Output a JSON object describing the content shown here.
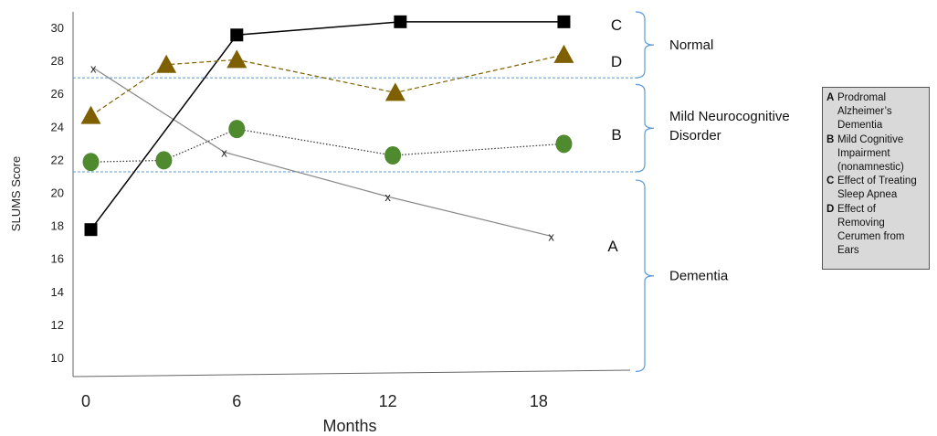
{
  "chart_data": {
    "type": "line",
    "xlabel": "Months",
    "ylabel": "SLUMS Score",
    "x_ticks": [
      "0",
      "6",
      "12",
      "18"
    ],
    "y_ticks": [
      "10",
      "12",
      "14",
      "16",
      "18",
      "20",
      "22",
      "24",
      "26",
      "28",
      "30"
    ],
    "xlim": [
      0,
      21
    ],
    "ylim": [
      9,
      31
    ],
    "series": [
      {
        "name": "A",
        "marker": "x",
        "color": "#888888",
        "line_style": "solid",
        "x": [
          0.3,
          5.5,
          12,
          18.5
        ],
        "y": [
          27.6,
          22.5,
          19.8,
          17.4
        ]
      },
      {
        "name": "B",
        "marker": "circle",
        "color": "#4f8a2f",
        "line_style": "dotted",
        "x": [
          0.2,
          3.1,
          6,
          12.2,
          19
        ],
        "y": [
          21.9,
          22.0,
          23.9,
          22.3,
          23.0
        ]
      },
      {
        "name": "C",
        "marker": "square",
        "color": "#000000",
        "line_style": "solid",
        "x": [
          0.2,
          6,
          12.5,
          19
        ],
        "y": [
          17.8,
          29.6,
          30.4,
          30.4
        ]
      },
      {
        "name": "D",
        "marker": "triangle",
        "color": "#7f6000",
        "line_style": "dashed",
        "x": [
          0.2,
          3.2,
          6,
          12.3,
          19
        ],
        "y": [
          24.7,
          27.8,
          28.1,
          26.1,
          28.4
        ]
      }
    ],
    "thresholds": [
      27,
      21.3
    ],
    "regions": [
      {
        "label": "Normal",
        "y_range": [
          27,
          31
        ]
      },
      {
        "label_lines": [
          "Mild Neurocognitive",
          "Disorder"
        ],
        "y_range": [
          21.3,
          26.6
        ]
      },
      {
        "label": "Dementia",
        "y_range": [
          9.2,
          20.8
        ]
      }
    ],
    "legend": {
      "placement": "right",
      "items": [
        {
          "key": "A",
          "lines": [
            "Prodromal",
            "Alzheimer’s",
            "Dementia"
          ]
        },
        {
          "key": "B",
          "lines": [
            "Mild Cognitive",
            "Impairment",
            "(nonamnestic)"
          ]
        },
        {
          "key": "C",
          "lines": [
            "Effect of Treating",
            "Sleep Apnea"
          ]
        },
        {
          "key": "D",
          "lines": [
            "Effect of",
            "Removing",
            "Cerumen from",
            "Ears"
          ]
        }
      ]
    }
  }
}
